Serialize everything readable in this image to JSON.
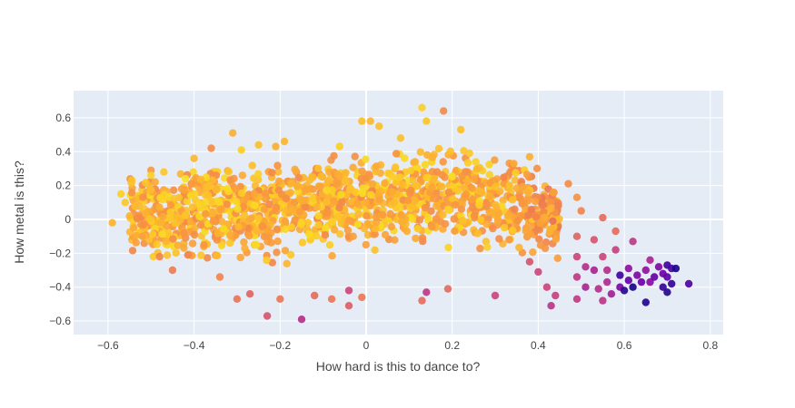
{
  "chart_data": {
    "type": "scatter",
    "xlabel": "How hard is this to dance to?",
    "ylabel": "How metal is this?",
    "xlim": [
      -0.68,
      0.83
    ],
    "ylim": [
      -0.68,
      0.76
    ],
    "xticks": [
      -0.6,
      -0.4,
      -0.2,
      0,
      0.2,
      0.4,
      0.6,
      0.8
    ],
    "yticks": [
      -0.6,
      -0.4,
      -0.2,
      0,
      0.2,
      0.4,
      0.6
    ],
    "xtick_labels": [
      "−0.6",
      "−0.4",
      "−0.2",
      "0",
      "0.2",
      "0.4",
      "0.6",
      "0.8"
    ],
    "ytick_labels": [
      "−0.6",
      "−0.4",
      "−0.2",
      "0",
      "0.2",
      "0.4",
      "0.6"
    ],
    "grid": true,
    "colors": {
      "plot_background": "#E5ECF6",
      "grid": "#FFFFFF",
      "colorscale": [
        "#0d0887",
        "#46039f",
        "#7201a8",
        "#9c179e",
        "#bd3786",
        "#d8576b",
        "#ed7953",
        "#fb9f3a",
        "#fdca26",
        "#f0f921"
      ]
    },
    "points": [
      {
        "x": -0.59,
        "y": -0.02,
        "c": 0.83
      },
      {
        "x": -0.57,
        "y": 0.15,
        "c": 0.9
      },
      {
        "x": -0.56,
        "y": 0.1,
        "c": 0.88
      },
      {
        "x": -0.55,
        "y": 0.02,
        "c": 0.84
      },
      {
        "x": -0.54,
        "y": -0.05,
        "c": 0.8
      },
      {
        "x": -0.52,
        "y": -0.1,
        "c": 0.78
      },
      {
        "x": -0.5,
        "y": 0.26,
        "c": 0.9
      },
      {
        "x": -0.47,
        "y": 0.28,
        "c": 0.88
      },
      {
        "x": -0.48,
        "y": -0.22,
        "c": 0.7
      },
      {
        "x": -0.45,
        "y": -0.3,
        "c": 0.68
      },
      {
        "x": -0.42,
        "y": 0.24,
        "c": 0.95
      },
      {
        "x": -0.4,
        "y": 0.36,
        "c": 0.84
      },
      {
        "x": -0.36,
        "y": 0.42,
        "c": 0.72
      },
      {
        "x": -0.34,
        "y": -0.34,
        "c": 0.7
      },
      {
        "x": -0.31,
        "y": 0.51,
        "c": 0.82
      },
      {
        "x": -0.29,
        "y": 0.41,
        "c": 0.9
      },
      {
        "x": -0.3,
        "y": -0.47,
        "c": 0.65
      },
      {
        "x": -0.27,
        "y": -0.44,
        "c": 0.6
      },
      {
        "x": -0.25,
        "y": 0.44,
        "c": 0.86
      },
      {
        "x": -0.21,
        "y": 0.43,
        "c": 0.82
      },
      {
        "x": -0.19,
        "y": 0.46,
        "c": 0.84
      },
      {
        "x": -0.23,
        "y": -0.57,
        "c": 0.55
      },
      {
        "x": -0.2,
        "y": -0.47,
        "c": 0.66
      },
      {
        "x": -0.15,
        "y": -0.59,
        "c": 0.42
      },
      {
        "x": -0.12,
        "y": -0.45,
        "c": 0.62
      },
      {
        "x": -0.08,
        "y": -0.47,
        "c": 0.66
      },
      {
        "x": -0.04,
        "y": -0.42,
        "c": 0.5
      },
      {
        "x": -0.04,
        "y": -0.51,
        "c": 0.58
      },
      {
        "x": -0.01,
        "y": -0.46,
        "c": 0.66
      },
      {
        "x": -0.01,
        "y": 0.58,
        "c": 0.86
      },
      {
        "x": 0.01,
        "y": 0.58,
        "c": 0.84
      },
      {
        "x": 0.03,
        "y": 0.55,
        "c": 0.86
      },
      {
        "x": 0.08,
        "y": 0.48,
        "c": 0.86
      },
      {
        "x": 0.13,
        "y": 0.66,
        "c": 0.9
      },
      {
        "x": 0.14,
        "y": 0.58,
        "c": 0.88
      },
      {
        "x": 0.18,
        "y": 0.64,
        "c": 0.72
      },
      {
        "x": 0.22,
        "y": 0.53,
        "c": 0.86
      },
      {
        "x": 0.13,
        "y": -0.48,
        "c": 0.62
      },
      {
        "x": 0.14,
        "y": -0.43,
        "c": 0.45
      },
      {
        "x": 0.19,
        "y": -0.41,
        "c": 0.62
      },
      {
        "x": 0.3,
        "y": -0.45,
        "c": 0.5
      },
      {
        "x": 0.38,
        "y": 0.37,
        "c": 0.82
      },
      {
        "x": 0.38,
        "y": -0.25,
        "c": 0.55
      },
      {
        "x": 0.4,
        "y": -0.31,
        "c": 0.5
      },
      {
        "x": 0.42,
        "y": -0.4,
        "c": 0.5
      },
      {
        "x": 0.43,
        "y": -0.51,
        "c": 0.44
      },
      {
        "x": 0.44,
        "y": -0.45,
        "c": 0.48
      },
      {
        "x": 0.47,
        "y": 0.21,
        "c": 0.72
      },
      {
        "x": 0.49,
        "y": 0.13,
        "c": 0.74
      },
      {
        "x": 0.5,
        "y": 0.05,
        "c": 0.7
      },
      {
        "x": 0.49,
        "y": -0.1,
        "c": 0.6
      },
      {
        "x": 0.49,
        "y": -0.22,
        "c": 0.5
      },
      {
        "x": 0.49,
        "y": -0.34,
        "c": 0.45
      },
      {
        "x": 0.49,
        "y": -0.47,
        "c": 0.46
      },
      {
        "x": 0.51,
        "y": -0.4,
        "c": 0.38
      },
      {
        "x": 0.51,
        "y": -0.28,
        "c": 0.42
      },
      {
        "x": 0.53,
        "y": -0.12,
        "c": 0.55
      },
      {
        "x": 0.53,
        "y": -0.3,
        "c": 0.38
      },
      {
        "x": 0.55,
        "y": 0.01,
        "c": 0.62
      },
      {
        "x": 0.54,
        "y": -0.41,
        "c": 0.42
      },
      {
        "x": 0.55,
        "y": -0.48,
        "c": 0.44
      },
      {
        "x": 0.55,
        "y": -0.22,
        "c": 0.5
      },
      {
        "x": 0.56,
        "y": -0.3,
        "c": 0.42
      },
      {
        "x": 0.56,
        "y": -0.37,
        "c": 0.4
      },
      {
        "x": 0.57,
        "y": -0.44,
        "c": 0.36
      },
      {
        "x": 0.58,
        "y": -0.07,
        "c": 0.62
      },
      {
        "x": 0.58,
        "y": -0.18,
        "c": 0.48
      },
      {
        "x": 0.59,
        "y": -0.33,
        "c": 0.1
      },
      {
        "x": 0.59,
        "y": -0.4,
        "c": 0.25
      },
      {
        "x": 0.6,
        "y": -0.42,
        "c": 0.05
      },
      {
        "x": 0.61,
        "y": -0.36,
        "c": 0.2
      },
      {
        "x": 0.61,
        "y": -0.29,
        "c": 0.3
      },
      {
        "x": 0.62,
        "y": -0.4,
        "c": 0.02
      },
      {
        "x": 0.62,
        "y": -0.13,
        "c": 0.45
      },
      {
        "x": 0.63,
        "y": -0.33,
        "c": 0.26
      },
      {
        "x": 0.64,
        "y": -0.37,
        "c": 0.22
      },
      {
        "x": 0.65,
        "y": -0.49,
        "c": 0.04
      },
      {
        "x": 0.65,
        "y": -0.3,
        "c": 0.3
      },
      {
        "x": 0.66,
        "y": -0.24,
        "c": 0.38
      },
      {
        "x": 0.66,
        "y": -0.37,
        "c": 0.28
      },
      {
        "x": 0.67,
        "y": -0.34,
        "c": 0.2
      },
      {
        "x": 0.68,
        "y": -0.28,
        "c": 0.26
      },
      {
        "x": 0.69,
        "y": -0.32,
        "c": 0.22
      },
      {
        "x": 0.69,
        "y": -0.4,
        "c": 0.08
      },
      {
        "x": 0.7,
        "y": -0.27,
        "c": 0.1
      },
      {
        "x": 0.7,
        "y": -0.34,
        "c": 0.18
      },
      {
        "x": 0.7,
        "y": -0.43,
        "c": 0.05
      },
      {
        "x": 0.71,
        "y": -0.29,
        "c": 0.12
      },
      {
        "x": 0.71,
        "y": -0.38,
        "c": 0.08
      },
      {
        "x": 0.72,
        "y": -0.29,
        "c": 0.03
      },
      {
        "x": 0.75,
        "y": -0.38,
        "c": 0.15
      }
    ]
  }
}
